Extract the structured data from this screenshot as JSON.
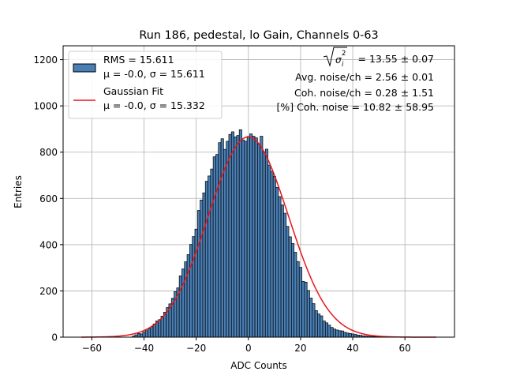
{
  "chart_data": {
    "type": "bar",
    "title": "Run 186, pedestal, lo Gain, Channels 0-63",
    "xlabel": "ADC Counts",
    "ylabel": "Entries",
    "xlim": [
      -71,
      79
    ],
    "ylim": [
      0,
      1260
    ],
    "xticks": [
      -60,
      -40,
      -20,
      0,
      20,
      40,
      60
    ],
    "yticks": [
      0,
      200,
      400,
      600,
      800,
      1000,
      1200
    ],
    "grid": true,
    "bin_width": 1,
    "bin_centers": [
      -44,
      -43,
      -42,
      -41,
      -40,
      -39,
      -38,
      -37,
      -36,
      -35,
      -34,
      -33,
      -32,
      -31,
      -30,
      -29,
      -28,
      -27,
      -26,
      -25,
      -24,
      -23,
      -22,
      -21,
      -20,
      -19,
      -18,
      -17,
      -16,
      -15,
      -14,
      -13,
      -12,
      -11,
      -10,
      -9,
      -8,
      -7,
      -6,
      -5,
      -4,
      -3,
      -2,
      -1,
      0,
      1,
      2,
      3,
      4,
      5,
      6,
      7,
      8,
      9,
      10,
      11,
      12,
      13,
      14,
      15,
      16,
      17,
      18,
      19,
      20,
      21,
      22,
      23,
      24,
      25,
      26,
      27,
      28,
      29,
      30,
      31,
      32,
      33,
      34,
      35,
      36,
      37,
      38,
      39,
      40,
      41,
      42,
      43,
      44,
      45,
      46,
      47,
      48,
      49,
      50,
      51,
      52,
      53,
      54,
      55
    ],
    "counts": [
      5,
      10,
      16,
      14,
      22,
      28,
      36,
      45,
      57,
      70,
      76,
      91,
      108,
      128,
      144,
      168,
      197,
      213,
      265,
      295,
      326,
      357,
      401,
      435,
      467,
      548,
      593,
      624,
      674,
      697,
      727,
      780,
      790,
      841,
      858,
      812,
      847,
      877,
      888,
      866,
      872,
      897,
      853,
      847,
      868,
      879,
      869,
      862,
      835,
      869,
      800,
      813,
      744,
      717,
      695,
      648,
      608,
      572,
      536,
      479,
      434,
      405,
      367,
      327,
      302,
      241,
      238,
      202,
      169,
      145,
      115,
      100,
      92,
      70,
      62,
      52,
      42,
      35,
      31,
      28,
      27,
      21,
      18,
      16,
      14,
      12,
      9,
      8,
      6,
      5,
      4,
      3,
      3,
      2,
      2,
      1,
      1,
      1,
      0,
      0
    ],
    "series": [
      {
        "name": "RMS = 15.611",
        "name_line2": "μ = -0.0, σ = 15.611",
        "kind": "histogram",
        "color": "#4a7fb5",
        "edge_color": "#000000"
      },
      {
        "name": "Gaussian Fit",
        "name_line2": "μ = -0.0, σ = 15.332",
        "kind": "line",
        "color": "#e8161b",
        "mu": 0.0,
        "sigma": 15.332,
        "amplitude": 866,
        "x_range": [
          -64,
          72
        ]
      }
    ],
    "legend_position": "top-left",
    "annotations": [
      {
        "prefix": "",
        "symbol": "σ",
        "sub": "i",
        "sup": "2",
        "suffix": " = 13.55 ± 0.07"
      },
      {
        "text": "Avg. noise/ch = 2.56 ± 0.01"
      },
      {
        "text": "Coh. noise/ch = 0.28 ± 1.51"
      },
      {
        "text": "[%] Coh. noise = 10.82 ± 58.95"
      }
    ]
  }
}
